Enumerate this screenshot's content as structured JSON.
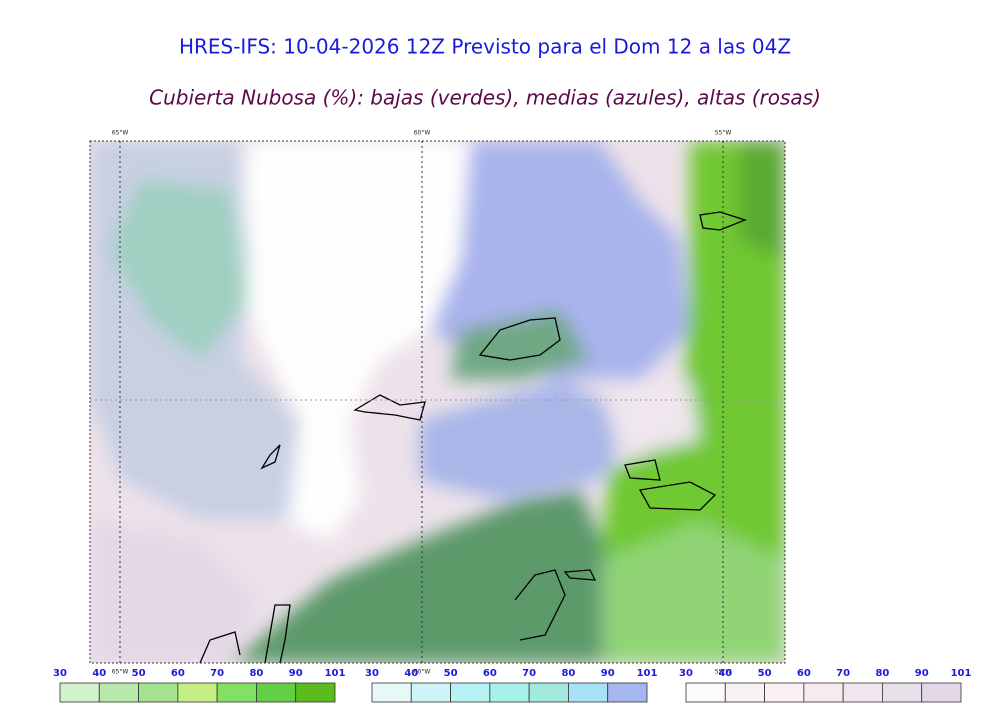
{
  "header": {
    "title": "HRES-IFS: 10-04-2026 12Z Previsto para el Dom 12 a las 04Z",
    "subtitle": "Cubierta Nubosa (%): bajas (verdes), medias (azules), altas (rosas)"
  },
  "map": {
    "top_lon_labels": [
      "65°W",
      "60°W",
      "55°W"
    ],
    "bottom_lon_labels": [
      "65°W",
      "60°W",
      "55°W"
    ]
  },
  "colorbars": [
    {
      "ticks": [
        30,
        40,
        50,
        60,
        70,
        80,
        90,
        101
      ],
      "colors": [
        "#d2f2cc",
        "#b8eaae",
        "#a4e290",
        "#c4ee84",
        "#84e062",
        "#62d044",
        "#5cbc1e"
      ]
    },
    {
      "ticks": [
        30,
        40,
        50,
        60,
        70,
        80,
        90,
        101
      ],
      "colors": [
        "#e6f8f8",
        "#cef4f8",
        "#b6f2f4",
        "#a8f2ea",
        "#a2eadc",
        "#a8e2f8",
        "#a6b6f0"
      ]
    },
    {
      "ticks": [
        30,
        40,
        50,
        60,
        70,
        80,
        90,
        101
      ],
      "colors": [
        "#fcfafa",
        "#f8f2f2",
        "#fcf0f4",
        "#f8eaee",
        "#f2e6ee",
        "#eae0ec",
        "#e4d8e8"
      ]
    }
  ]
}
